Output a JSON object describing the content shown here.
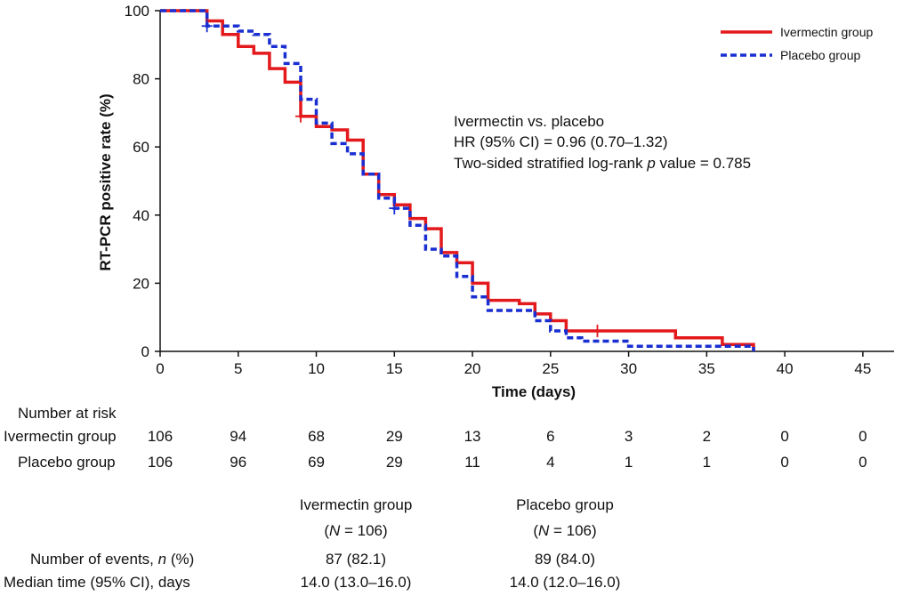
{
  "chart_data": {
    "type": "line",
    "subtype": "kaplan-meier",
    "xlabel": "Time (days)",
    "ylabel": "RT-PCR positive rate (%)",
    "xlim": [
      0,
      47
    ],
    "ylim": [
      0,
      100
    ],
    "xticks": [
      0,
      5,
      10,
      15,
      20,
      25,
      30,
      35,
      40,
      45
    ],
    "yticks": [
      0,
      20,
      40,
      60,
      80,
      100
    ],
    "legend_position": "top-right",
    "series": [
      {
        "name": "Ivermectin group",
        "color": "#e3191c",
        "style": "solid",
        "steps": [
          [
            0,
            100
          ],
          [
            3,
            100
          ],
          [
            3,
            97
          ],
          [
            4,
            97
          ],
          [
            4,
            93
          ],
          [
            5,
            93
          ],
          [
            5,
            89.5
          ],
          [
            6,
            89.5
          ],
          [
            6,
            87.5
          ],
          [
            7,
            87.5
          ],
          [
            7,
            83
          ],
          [
            8,
            83
          ],
          [
            8,
            79
          ],
          [
            9,
            79
          ],
          [
            9,
            69
          ],
          [
            10,
            69
          ],
          [
            10,
            66
          ],
          [
            11,
            66
          ],
          [
            11,
            65
          ],
          [
            12,
            65
          ],
          [
            12,
            62
          ],
          [
            13,
            62
          ],
          [
            13,
            52
          ],
          [
            14,
            52
          ],
          [
            14,
            46
          ],
          [
            15,
            46
          ],
          [
            15,
            43
          ],
          [
            16,
            43
          ],
          [
            16,
            39
          ],
          [
            17,
            39
          ],
          [
            17,
            36
          ],
          [
            18,
            36
          ],
          [
            18,
            29
          ],
          [
            19,
            29
          ],
          [
            19,
            26
          ],
          [
            20,
            26
          ],
          [
            20,
            20
          ],
          [
            21,
            20
          ],
          [
            21,
            15
          ],
          [
            23,
            15
          ],
          [
            23,
            14
          ],
          [
            24,
            14
          ],
          [
            24,
            11
          ],
          [
            25,
            11
          ],
          [
            25,
            9
          ],
          [
            26,
            9
          ],
          [
            26,
            6
          ],
          [
            33,
            6
          ],
          [
            33,
            4
          ],
          [
            36,
            4
          ],
          [
            36,
            2
          ],
          [
            38,
            2
          ],
          [
            38,
            0
          ]
        ],
        "censor_marks": [
          [
            9,
            69
          ],
          [
            28,
            6
          ]
        ]
      },
      {
        "name": "Placebo group",
        "color": "#1a2fd1",
        "style": "dashed",
        "steps": [
          [
            0,
            100
          ],
          [
            3,
            100
          ],
          [
            3,
            95.5
          ],
          [
            5,
            95.5
          ],
          [
            5,
            94
          ],
          [
            6,
            94
          ],
          [
            6,
            93
          ],
          [
            7,
            93
          ],
          [
            7,
            89.5
          ],
          [
            8,
            89.5
          ],
          [
            8,
            84.5
          ],
          [
            9,
            84.5
          ],
          [
            9,
            74
          ],
          [
            10,
            74
          ],
          [
            10,
            67
          ],
          [
            11,
            67
          ],
          [
            11,
            61
          ],
          [
            12,
            61
          ],
          [
            12,
            58
          ],
          [
            13,
            58
          ],
          [
            13,
            52
          ],
          [
            14,
            52
          ],
          [
            14,
            45
          ],
          [
            15,
            45
          ],
          [
            15,
            42
          ],
          [
            16,
            42
          ],
          [
            16,
            37
          ],
          [
            17,
            37
          ],
          [
            17,
            30
          ],
          [
            18,
            30
          ],
          [
            18,
            28
          ],
          [
            19,
            28
          ],
          [
            19,
            22
          ],
          [
            20,
            22
          ],
          [
            20,
            16
          ],
          [
            21,
            16
          ],
          [
            21,
            12
          ],
          [
            24,
            12
          ],
          [
            24,
            9
          ],
          [
            25,
            9
          ],
          [
            25,
            6
          ],
          [
            26,
            6
          ],
          [
            26,
            4
          ],
          [
            27,
            4
          ],
          [
            27,
            3
          ],
          [
            30,
            3
          ],
          [
            30,
            1.5
          ],
          [
            38,
            1.5
          ],
          [
            38,
            0
          ]
        ],
        "censor_marks": [
          [
            3,
            95.5
          ],
          [
            15,
            42
          ]
        ]
      }
    ],
    "annotations": [
      "Ivermectin vs. placebo",
      "HR (95% CI) = 0.96 (0.70–1.32)",
      "Two-sided stratified log-rank p value = 0.785"
    ]
  },
  "risk_table": {
    "title": "Number at risk",
    "rows": [
      {
        "label": "Ivermectin group",
        "values": [
          "106",
          "94",
          "68",
          "29",
          "13",
          "6",
          "3",
          "2",
          "0",
          "0"
        ]
      },
      {
        "label": "Placebo group",
        "values": [
          "106",
          "96",
          "69",
          "29",
          "11",
          "4",
          "1",
          "1",
          "0",
          "0"
        ]
      }
    ]
  },
  "summary_table": {
    "columns": [
      {
        "name": "Ivermectin group",
        "n_prefix": "(",
        "n_italic": "N",
        "n_suffix": " = 106)"
      },
      {
        "name": "Placebo group",
        "n_prefix": "(",
        "n_italic": "N",
        "n_suffix": " = 106)"
      }
    ],
    "rows": [
      {
        "label_prefix": "Number of events, ",
        "label_italic": "n",
        "label_suffix": " (%)",
        "values": [
          "87 (82.1)",
          "89 (84.0)"
        ]
      },
      {
        "label_prefix": "Median time (95% CI), days",
        "label_italic": "",
        "label_suffix": "",
        "values": [
          "14.0 (13.0–16.0)",
          "14.0 (12.0–16.0)"
        ]
      }
    ]
  },
  "annotation_p": {
    "prefix": "Two-sided stratified log-rank ",
    "italic": "p",
    "suffix": " value = 0.785"
  }
}
